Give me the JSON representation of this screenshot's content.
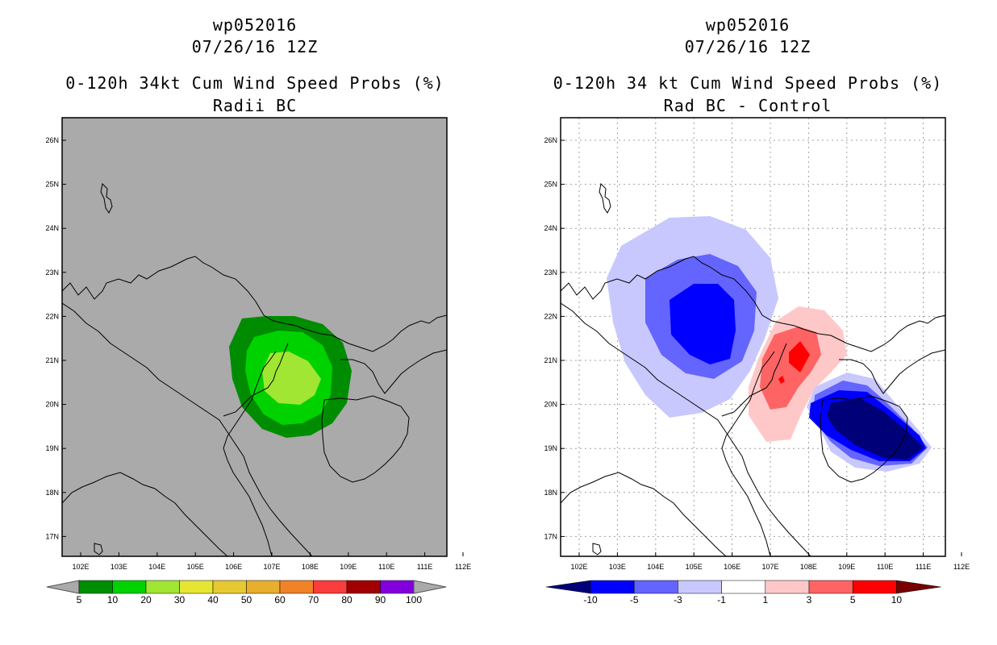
{
  "left_panel": {
    "storm_id": "wp052016",
    "datetime": "07/26/16 12Z",
    "product": "0-120h 34kt Cum Wind Speed Probs (%)",
    "subtitle": "Radii BC",
    "background_color": "#aaaaaa",
    "colorbar": {
      "labels": [
        "5",
        "10",
        "20",
        "30",
        "40",
        "50",
        "60",
        "70",
        "80",
        "90",
        "100"
      ],
      "colors": [
        "#008c00",
        "#00d200",
        "#a0e632",
        "#e6e632",
        "#e6c832",
        "#e6af2d",
        "#f08228",
        "#fa3c3c",
        "#a00000",
        "#8200dc"
      ]
    }
  },
  "right_panel": {
    "storm_id": "wp052016",
    "datetime": "07/26/16 12Z",
    "product": "0-120h 34 kt Cum Wind Speed Probs (%)",
    "subtitle": "Rad BC - Control",
    "background_color": "#ffffff",
    "colorbar": {
      "labels": [
        "-10",
        "-5",
        "-3",
        "-1",
        "1",
        "3",
        "5",
        "10"
      ],
      "colors": [
        "#000078",
        "#0000ff",
        "#6464ff",
        "#c8c8ff",
        "#ffffff",
        "#ffc8c8",
        "#ff6464",
        "#ff0000",
        "#780000"
      ]
    }
  },
  "axes": {
    "lon_labels": [
      "102E",
      "103E",
      "104E",
      "105E",
      "106E",
      "107E",
      "108E",
      "109E",
      "110E",
      "111E",
      "112E"
    ],
    "lat_labels": [
      "26N",
      "25N",
      "24N",
      "23N",
      "22N",
      "21N",
      "20N",
      "19N",
      "18N",
      "17N"
    ]
  }
}
